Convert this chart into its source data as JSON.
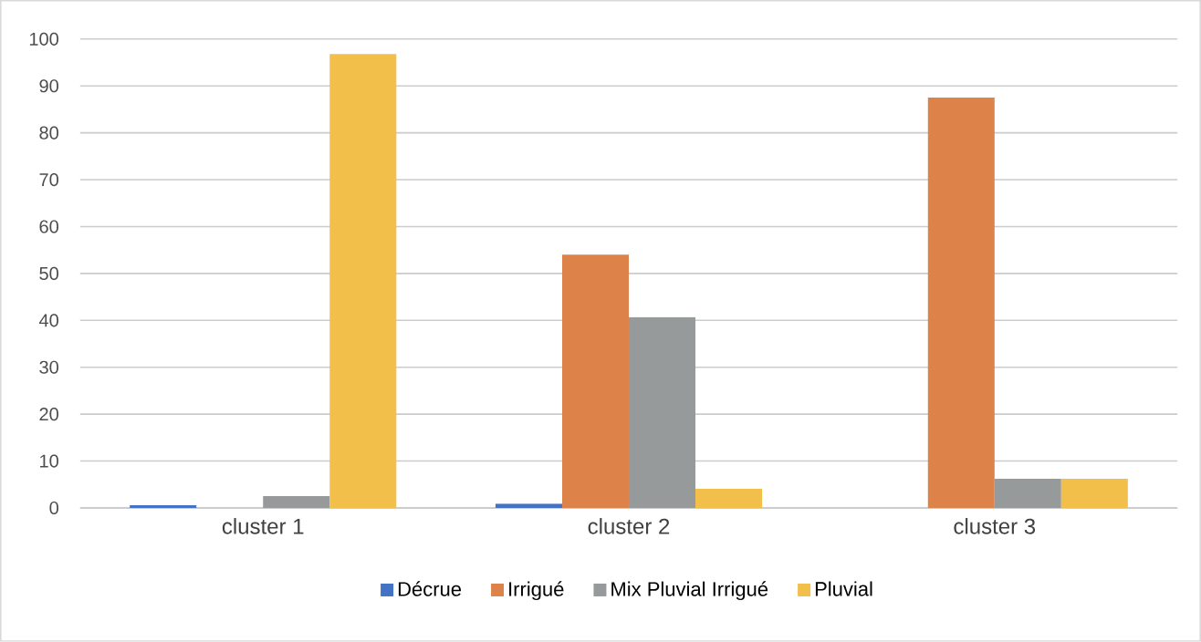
{
  "chart_data": {
    "type": "bar",
    "categories": [
      "cluster 1",
      "cluster 2",
      "cluster 3"
    ],
    "series": [
      {
        "name": "Décrue",
        "color": "#4472c4",
        "values": [
          0.6,
          0.9,
          0
        ]
      },
      {
        "name": "Irrigué",
        "color": "#dd834a",
        "values": [
          0,
          54,
          87.5
        ]
      },
      {
        "name": "Mix Pluvial Irrigué",
        "color": "#979a9a",
        "values": [
          2.5,
          40.7,
          6.2
        ]
      },
      {
        "name": "Pluvial",
        "color": "#f2bf4a",
        "values": [
          96.8,
          4.1,
          6.2
        ]
      }
    ],
    "ylim": [
      0,
      100
    ],
    "yticks": [
      0,
      10,
      20,
      30,
      40,
      50,
      60,
      70,
      80,
      90,
      100
    ],
    "grid": "y",
    "legend": "bottom"
  }
}
